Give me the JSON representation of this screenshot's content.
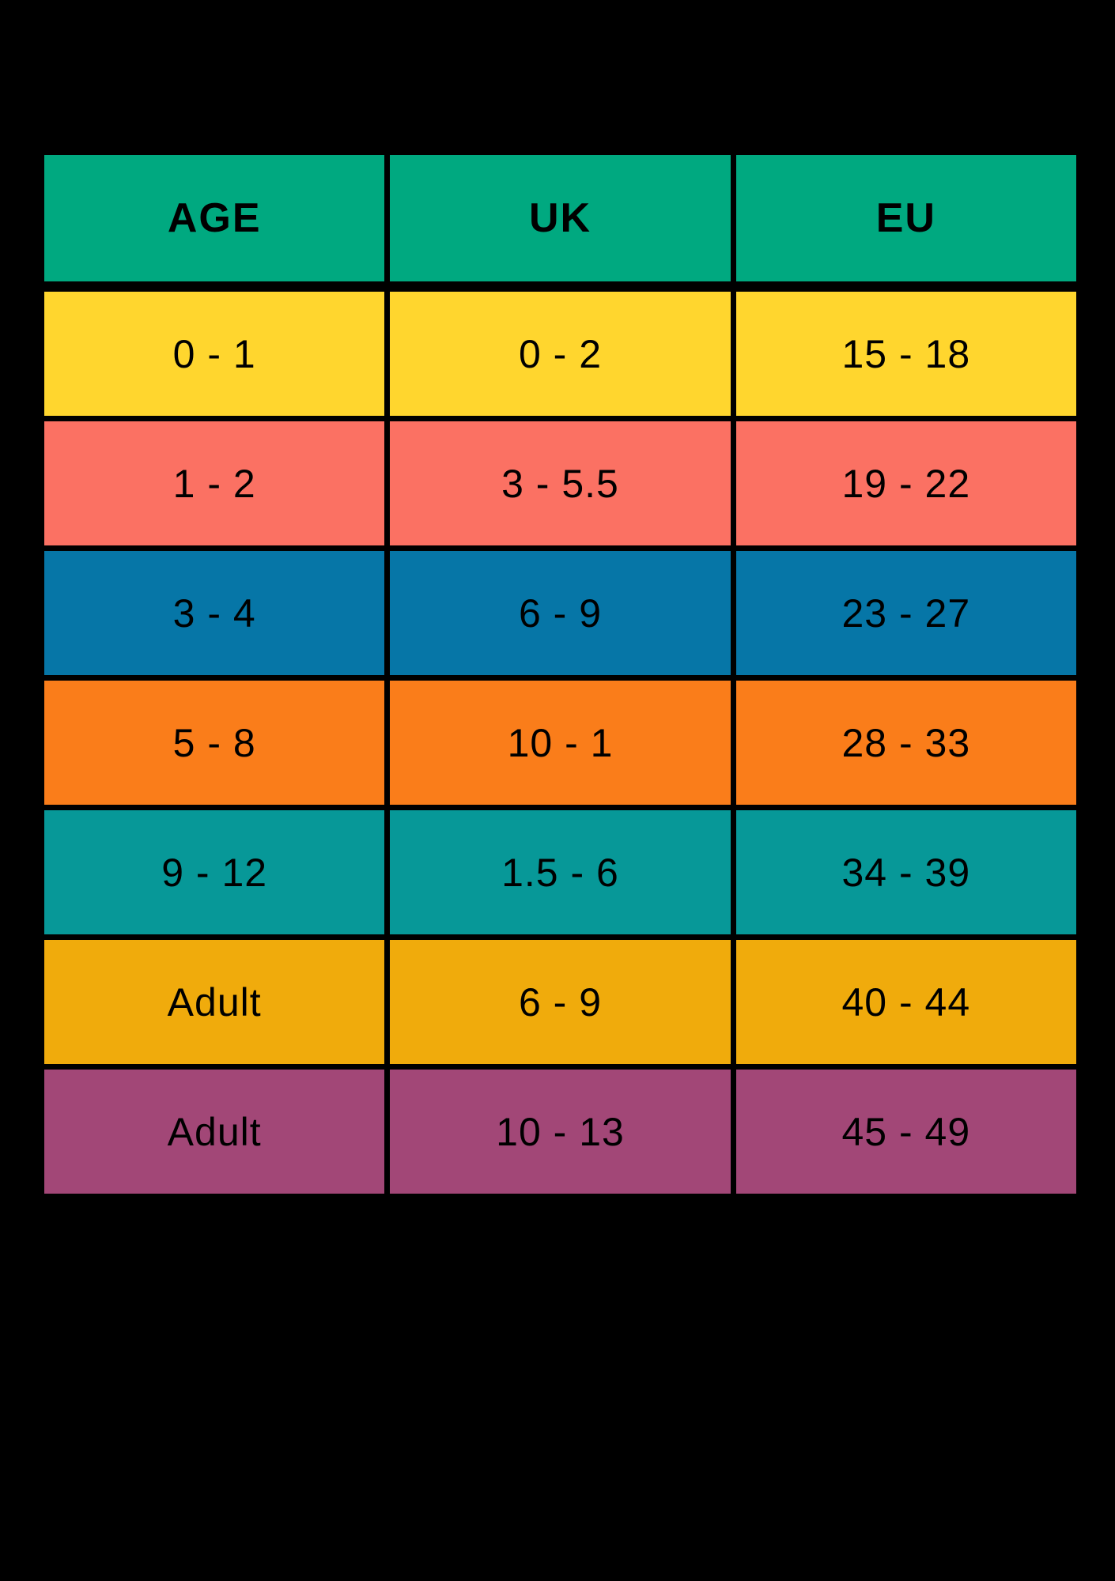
{
  "colors": {
    "page_background": "#000000",
    "grid_line": "#000000",
    "text": "#000000",
    "header_bg": "#00A980"
  },
  "table": {
    "headers": {
      "age": "AGE",
      "uk": "UK",
      "eu": "EU"
    },
    "rows": [
      {
        "age": "0 - 1",
        "uk": "0 - 2",
        "eu": "15 - 18",
        "bg": "#FFD62E"
      },
      {
        "age": "1 - 2",
        "uk": "3 - 5.5",
        "eu": "19 - 22",
        "bg": "#FB7163"
      },
      {
        "age": "3 - 4",
        "uk": "6 - 9",
        "eu": "23 - 27",
        "bg": "#0676A7"
      },
      {
        "age": "5 - 8",
        "uk": "10 - 1",
        "eu": "28 - 33",
        "bg": "#FA7D1A"
      },
      {
        "age": "9 - 12",
        "uk": "1.5 - 6",
        "eu": "34 - 39",
        "bg": "#079898"
      },
      {
        "age": "Adult",
        "uk": "6 - 9",
        "eu": "40 - 44",
        "bg": "#F0AB0C"
      },
      {
        "age": "Adult",
        "uk": "10 - 13",
        "eu": "45 - 49",
        "bg": "#A24777"
      }
    ]
  },
  "chart_data": {
    "type": "table",
    "title": "",
    "columns": [
      "AGE",
      "UK",
      "EU"
    ],
    "rows": [
      [
        "0 - 1",
        "0 - 2",
        "15 - 18"
      ],
      [
        "1 - 2",
        "3 - 5.5",
        "19 - 22"
      ],
      [
        "3 - 4",
        "6 - 9",
        "23 - 27"
      ],
      [
        "5 - 8",
        "10 - 1",
        "28 - 33"
      ],
      [
        "9 - 12",
        "1.5 - 6",
        "34 - 39"
      ],
      [
        "Adult",
        "6 - 9",
        "40 - 44"
      ],
      [
        "Adult",
        "10 - 13",
        "45 - 49"
      ]
    ],
    "row_colors": [
      "#FFD62E",
      "#FB7163",
      "#0676A7",
      "#FA7D1A",
      "#079898",
      "#F0AB0C",
      "#A24777"
    ],
    "header_color": "#00A980",
    "layout": {
      "background": "#000000",
      "grid": "black gaps between solid color cells"
    }
  }
}
